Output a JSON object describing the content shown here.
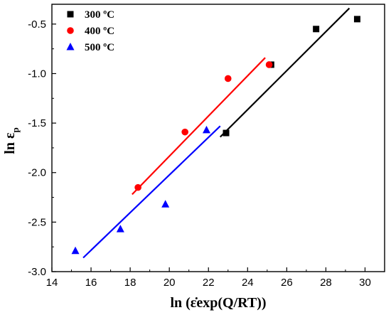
{
  "chart_data": {
    "type": "scatter",
    "xlabel": "ln (ε̇exp(Q/RT))",
    "ylabel_main": "ln ε",
    "ylabel_sub": "p",
    "xlim": [
      14,
      31
    ],
    "ylim": [
      -3.0,
      -0.3
    ],
    "xticks": [
      14,
      16,
      18,
      20,
      22,
      24,
      26,
      28,
      30
    ],
    "yticks": [
      -3.0,
      -2.5,
      -2.0,
      -1.5,
      -1.0,
      -0.5
    ],
    "ytick_labels": [
      "-3.0",
      "-2.5",
      "-2.0",
      "-1.5",
      "-1.0",
      "-0.5"
    ],
    "legend_position": "top-left",
    "series": [
      {
        "name": "300 ºC",
        "color": "#000000",
        "marker": "square",
        "points": [
          [
            22.9,
            -1.6
          ],
          [
            25.2,
            -0.91
          ],
          [
            27.5,
            -0.55
          ],
          [
            29.6,
            -0.45
          ]
        ],
        "fit": [
          [
            22.6,
            -1.64
          ],
          [
            29.2,
            -0.34
          ]
        ]
      },
      {
        "name": "400 ºC",
        "color": "#ff0000",
        "marker": "circle",
        "points": [
          [
            18.4,
            -2.15
          ],
          [
            20.8,
            -1.59
          ],
          [
            23.0,
            -1.05
          ],
          [
            25.1,
            -0.91
          ]
        ],
        "fit": [
          [
            18.1,
            -2.22
          ],
          [
            24.9,
            -0.84
          ]
        ]
      },
      {
        "name": "500 ºC",
        "color": "#0000ff",
        "marker": "triangle",
        "points": [
          [
            15.2,
            -2.79
          ],
          [
            17.5,
            -2.57
          ],
          [
            19.8,
            -2.32
          ],
          [
            21.9,
            -1.57
          ]
        ],
        "fit": [
          [
            15.6,
            -2.86
          ],
          [
            22.6,
            -1.53
          ]
        ]
      }
    ]
  }
}
